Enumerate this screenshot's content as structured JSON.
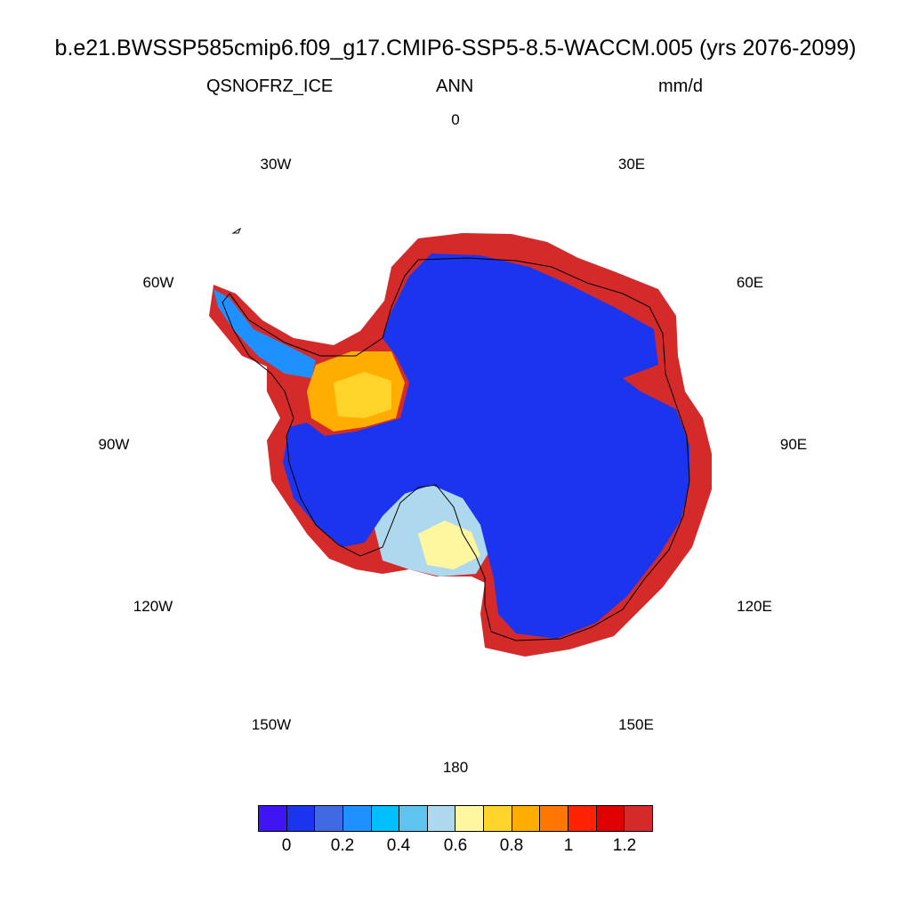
{
  "title": "b.e21.BWSSP585cmip6.f09_g17.CMIP6-SSP5-8.5-WACCM.005 (yrs 2076-2099)",
  "subtitle_left": "QSNOFRZ_ICE",
  "subtitle_center": "ANN",
  "subtitle_right": "mm/d",
  "longitude_labels": [
    "0",
    "30E",
    "60E",
    "90E",
    "120E",
    "150E",
    "180",
    "150W",
    "120W",
    "90W",
    "60W",
    "30W"
  ],
  "colorbar": {
    "colors": [
      "#3f16f3",
      "#1b35ef",
      "#4169e1",
      "#1e90ff",
      "#00bfff",
      "#5fc3f0",
      "#add8ee",
      "#fff79f",
      "#ffd42a",
      "#ffad00",
      "#ff7700",
      "#ff2200",
      "#e00000",
      "#d42a2a"
    ],
    "labels": [
      "0",
      "0.2",
      "0.4",
      "0.6",
      "0.8",
      "1",
      "1.2"
    ]
  },
  "map": {
    "projection": "south polar stereographic",
    "interior_color": "#1b35ef",
    "coast_high_color": "#d42a2a"
  }
}
